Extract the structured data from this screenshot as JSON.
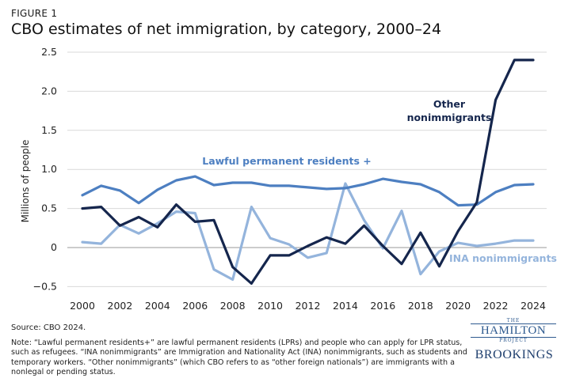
{
  "header": {
    "figure_label": "FIGURE 1",
    "title": "CBO estimates of net immigration, by category, 2000–24"
  },
  "footer": {
    "source": "Source: CBO 2024.",
    "note": "Note: “Lawful permanent residents+” are lawful permanent residents (LPRs) and people who can apply for LPR status, such as refugees. “INA nonimmigrants” are Immigration and Nationality Act (INA) nonimmigrants, such as students and temporary workers. “Other nonimmigrants” (which CBO refers to as “other foreign nationals”) are immigrants with a nonlegal or pending status."
  },
  "logos": {
    "hamilton_the": "THE",
    "hamilton_name": "HAMILTON",
    "hamilton_project": "PROJECT",
    "brookings": "BROOKINGS"
  },
  "chart_data": {
    "type": "line",
    "title": "CBO estimates of net immigration, by category, 2000–24",
    "xlabel": "",
    "ylabel": "Millions of people",
    "xlim": [
      2000,
      2024
    ],
    "ylim": [
      -0.6,
      2.5
    ],
    "x_ticks": [
      2000,
      2002,
      2004,
      2006,
      2008,
      2010,
      2012,
      2014,
      2016,
      2018,
      2020,
      2022,
      2024
    ],
    "y_ticks": [
      -0.5,
      0,
      0.5,
      1.0,
      1.5,
      2.0,
      2.5
    ],
    "y_tick_labels": [
      "−0.5",
      "0",
      "0.5",
      "1.0",
      "1.5",
      "2.0",
      "2.5"
    ],
    "grid": "horizontal",
    "x": [
      2000,
      2001,
      2002,
      2003,
      2004,
      2005,
      2006,
      2007,
      2008,
      2009,
      2010,
      2011,
      2012,
      2013,
      2014,
      2015,
      2016,
      2017,
      2018,
      2019,
      2020,
      2021,
      2022,
      2023,
      2024
    ],
    "series": [
      {
        "name": "Lawful permanent residents +",
        "color": "#4d7fc1",
        "values": [
          0.67,
          0.79,
          0.73,
          0.57,
          0.74,
          0.86,
          0.91,
          0.8,
          0.83,
          0.83,
          0.79,
          0.79,
          0.77,
          0.75,
          0.76,
          0.81,
          0.88,
          0.84,
          0.81,
          0.71,
          0.54,
          0.55,
          0.71,
          0.8,
          0.81
        ]
      },
      {
        "name": "INA nonimmigrants",
        "color": "#94b4dc",
        "values": [
          0.07,
          0.05,
          0.29,
          0.18,
          0.31,
          0.46,
          0.44,
          -0.28,
          -0.41,
          0.52,
          0.12,
          0.04,
          -0.13,
          -0.07,
          0.82,
          0.35,
          -0.01,
          0.47,
          -0.34,
          -0.05,
          0.06,
          0.02,
          0.05,
          0.09,
          0.09
        ]
      },
      {
        "name": "Other nonimmigrants",
        "color": "#15264d",
        "values": [
          0.5,
          0.52,
          0.28,
          0.39,
          0.26,
          0.55,
          0.33,
          0.35,
          -0.25,
          -0.46,
          -0.1,
          -0.1,
          0.02,
          0.13,
          0.05,
          0.28,
          0.02,
          -0.21,
          0.19,
          -0.24,
          0.21,
          0.58,
          1.89,
          2.4,
          2.4
        ]
      }
    ],
    "annotations": [
      {
        "series": "Lawful permanent residents +",
        "lines": [
          "Lawful permanent residents +"
        ]
      },
      {
        "series": "Other nonimmigrants",
        "lines": [
          "Other",
          "nonimmigrants"
        ]
      },
      {
        "series": "INA nonimmigrants",
        "lines": [
          "INA nonimmigrants"
        ]
      }
    ]
  }
}
